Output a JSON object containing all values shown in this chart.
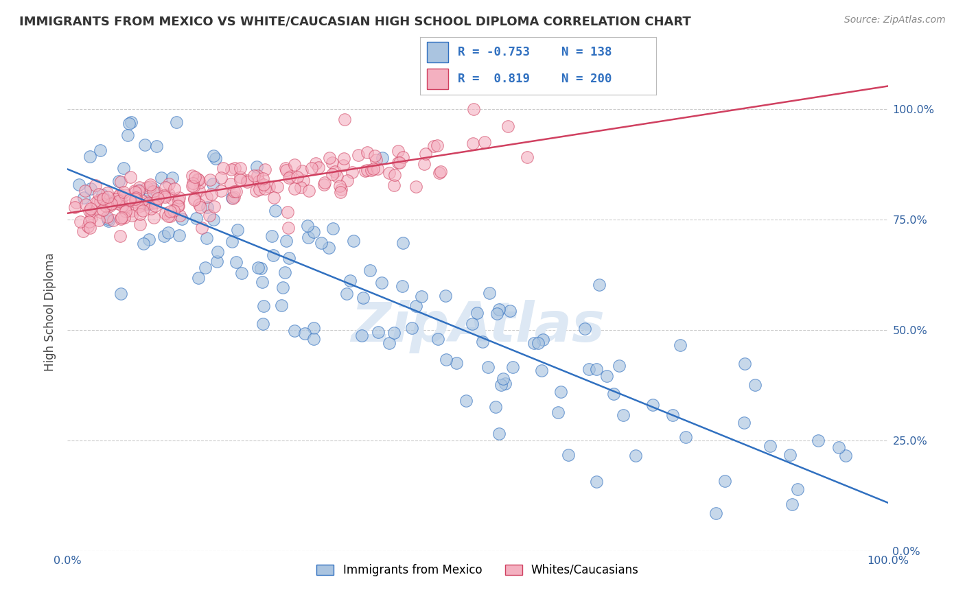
{
  "title": "IMMIGRANTS FROM MEXICO VS WHITE/CAUCASIAN HIGH SCHOOL DIPLOMA CORRELATION CHART",
  "source": "Source: ZipAtlas.com",
  "ylabel": "High School Diploma",
  "legend_label1": "Immigrants from Mexico",
  "legend_label2": "Whites/Caucasians",
  "R1": -0.753,
  "N1": 138,
  "R2": 0.819,
  "N2": 200,
  "color1": "#aac4e0",
  "color2": "#f4b0c0",
  "line_color1": "#3070c0",
  "line_color2": "#d04060",
  "bg_color": "#ffffff",
  "grid_color": "#cccccc",
  "title_color": "#333333",
  "source_color": "#888888",
  "tick_color": "#3060a0",
  "watermark": "ZipAtlas",
  "watermark_color": "#dde8f4",
  "seed1": 42,
  "seed2": 99
}
